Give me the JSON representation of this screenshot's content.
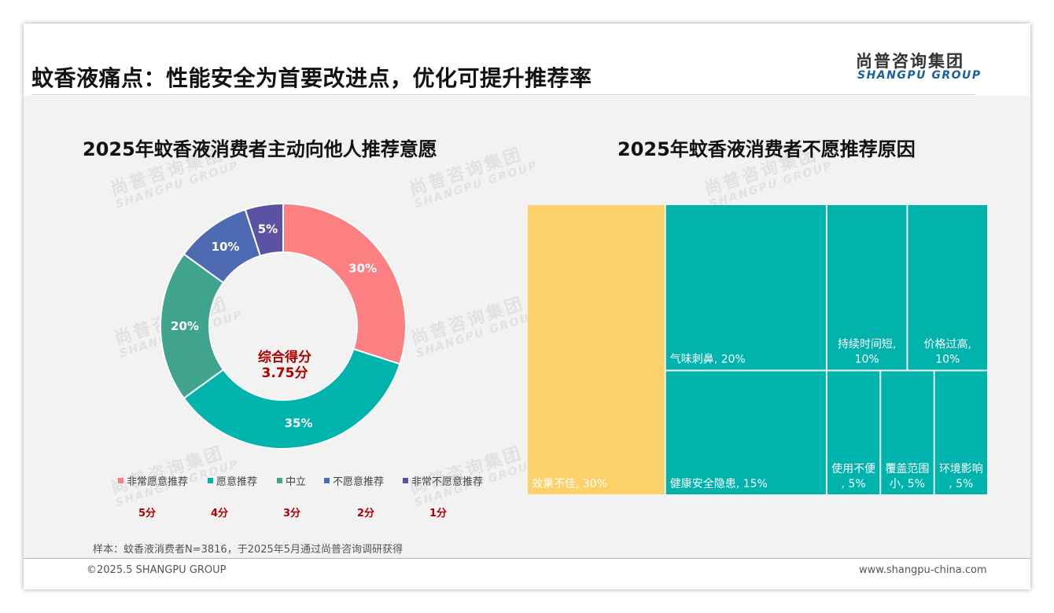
{
  "header": {
    "title": "蚊香液痛点：性能安全为首要改进点，优化可提升推荐率",
    "logo_cn": "尚普咨询集团",
    "logo_en": "SHANGPU GROUP"
  },
  "watermark": {
    "cn": "尚普咨询集团",
    "en": "SHANGPU GROUP"
  },
  "chart_data": [
    {
      "type": "pie",
      "title": "2025年蚊香液消费者主动向他人推荐意愿",
      "center_label": [
        "综合得分",
        "3.75分"
      ],
      "categories": [
        "非常愿意推荐",
        "愿意推荐",
        "中立",
        "不愿意推荐",
        "非常不愿意推荐"
      ],
      "values": [
        30,
        35,
        20,
        10,
        5
      ],
      "value_labels": [
        "30%",
        "35%",
        "20%",
        "10%",
        "5%"
      ],
      "scores": [
        "5分",
        "4分",
        "3分",
        "2分",
        "1分"
      ],
      "colors": [
        "#fc7f82",
        "#00b3ac",
        "#3fa38e",
        "#4d6ab2",
        "#5c52a4"
      ],
      "legend_position": "bottom"
    },
    {
      "type": "treemap",
      "title": "2025年蚊香液消费者不愿推荐原因",
      "items": [
        {
          "label": "效果不佳, 30%",
          "value": 30,
          "color": "#fdd16a"
        },
        {
          "label": "气味刺鼻, 20%",
          "value": 20,
          "color": "#00b3ac"
        },
        {
          "label": "持续时间短, 10%",
          "value": 10,
          "color": "#00b3ac"
        },
        {
          "label": "价格过高, 10%",
          "value": 10,
          "color": "#00b3ac"
        },
        {
          "label": "健康安全隐患, 15%",
          "value": 15,
          "color": "#00b3ac"
        },
        {
          "label": "使用不便, 5%",
          "value": 5,
          "color": "#00b3ac"
        },
        {
          "label": "覆盖范围小, 5%",
          "value": 5,
          "color": "#00b3ac"
        },
        {
          "label": "环境影响, 5%",
          "value": 5,
          "color": "#00b3ac"
        }
      ]
    }
  ],
  "footer": {
    "note": "样本：蚊香液消费者N=3816，于2025年5月通过尚普咨询调研获得",
    "copyright": "©2025.5 SHANGPU GROUP",
    "website": "www.shangpu-china.com"
  }
}
